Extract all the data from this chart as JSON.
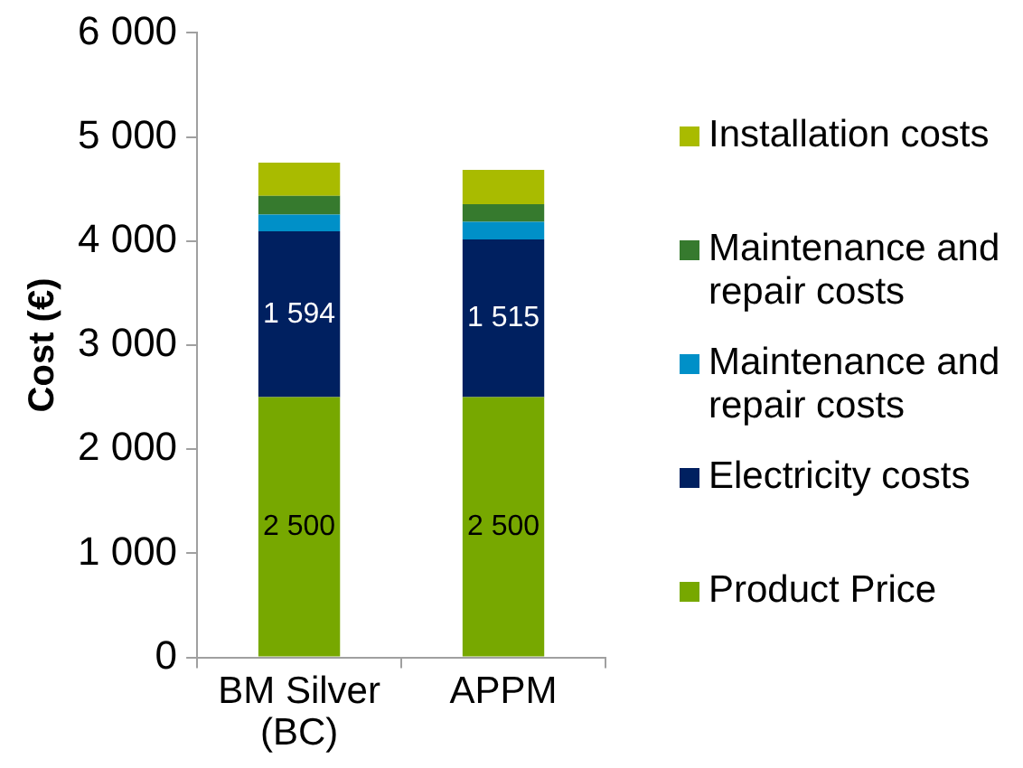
{
  "chart_data": {
    "type": "bar",
    "ylabel": "Cost (€)",
    "categories": [
      "BM Silver (BC)",
      "APPM"
    ],
    "stacked": true,
    "series": [
      {
        "name": "Product Price",
        "color": "#77a800",
        "values": [
          2500,
          2500
        ],
        "value_labels": [
          "2 500",
          "2 500"
        ]
      },
      {
        "name": "Electricity costs",
        "color": "#002060",
        "values": [
          1594,
          1515
        ],
        "value_labels": [
          "1 594",
          "1 515"
        ]
      },
      {
        "name": "Maintenance and repair costs",
        "color": "#0090c8",
        "values": [
          160,
          170
        ]
      },
      {
        "name": "Maintenance and repair costs",
        "color": "#367a2e",
        "values": [
          180,
          170
        ]
      },
      {
        "name": "Installation costs",
        "color": "#a9bb00",
        "values": [
          320,
          330
        ]
      }
    ],
    "ylim": [
      0,
      6000
    ],
    "yticks": [
      0,
      {
        "value": 1000,
        "label": "1 000"
      },
      {
        "value": 2000,
        "label": "2 000"
      },
      {
        "value": 3000,
        "label": "3 000"
      },
      {
        "value": 4000,
        "label": "4 000"
      },
      {
        "value": 5000,
        "label": "5 000"
      },
      {
        "value": 6000,
        "label": "6 000"
      }
    ],
    "grid": false,
    "legend": "right"
  }
}
